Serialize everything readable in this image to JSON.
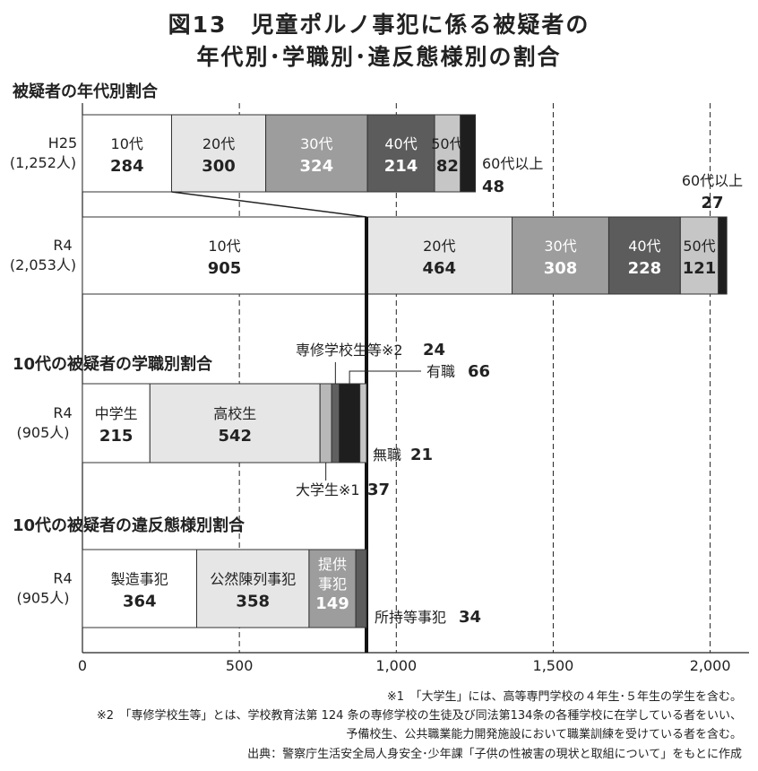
{
  "figure": {
    "title_line1": "図13　児童ポルノ事犯に係る被疑者の",
    "title_line2": "年代別･学職別･違反態様別の割合"
  },
  "chart_data": [
    {
      "type": "bar",
      "orientation": "horizontal",
      "stacked": true,
      "section_title": "被疑者の年代別割合",
      "xlim": [
        0,
        2100
      ],
      "x_ticks": [
        "0",
        "500",
        "1,000",
        "1,500",
        "2,000"
      ],
      "grid": "dashed vertical lines at 500, 1,000, 1,500, 2,000",
      "bars": [
        {
          "label": "H25",
          "sublabel": "(1,252人)",
          "segments": [
            {
              "name": "10代",
              "value": 284,
              "display": "284",
              "color": "#ffffff"
            },
            {
              "name": "20代",
              "value": 300,
              "display": "300",
              "color": "#e6e6e6"
            },
            {
              "name": "30代",
              "value": 324,
              "display": "324",
              "color": "#9d9d9d"
            },
            {
              "name": "40代",
              "value": 214,
              "display": "214",
              "color": "#5c5c5c"
            },
            {
              "name": "50代",
              "value": 82,
              "display": "82",
              "color": "#c6c6c6"
            },
            {
              "name": "60代以上",
              "value": 48,
              "display": "48",
              "color": "#1e1e1e"
            }
          ]
        },
        {
          "label": "R4",
          "sublabel": "(2,053人)",
          "segments": [
            {
              "name": "10代",
              "value": 905,
              "display": "905",
              "color": "#ffffff"
            },
            {
              "name": "20代",
              "value": 464,
              "display": "464",
              "color": "#e6e6e6"
            },
            {
              "name": "30代",
              "value": 308,
              "display": "308",
              "color": "#9d9d9d"
            },
            {
              "name": "40代",
              "value": 228,
              "display": "228",
              "color": "#5c5c5c"
            },
            {
              "name": "50代",
              "value": 121,
              "display": "121",
              "color": "#c6c6c6"
            },
            {
              "name": "60代以上",
              "value": 27,
              "display": "27",
              "color": "#1e1e1e"
            }
          ]
        }
      ]
    },
    {
      "type": "bar",
      "orientation": "horizontal",
      "stacked": true,
      "section_title": "10代の被疑者の学職別割合",
      "bars": [
        {
          "label": "R4",
          "sublabel": "(905人)",
          "segments": [
            {
              "name": "中学生",
              "value": 215,
              "display": "215",
              "color": "#ffffff"
            },
            {
              "name": "高校生",
              "value": 542,
              "display": "542",
              "color": "#e6e6e6"
            },
            {
              "name": "大学生※1",
              "value": 37,
              "display": "37",
              "color": "#b8b8b8"
            },
            {
              "name": "専修学校生等※2",
              "value": 24,
              "display": "24",
              "color": "#606060"
            },
            {
              "name": "有職",
              "value": 66,
              "display": "66",
              "color": "#1e1e1e"
            },
            {
              "name": "無職",
              "value": 21,
              "display": "21",
              "color": "#c6c6c6"
            }
          ]
        }
      ]
    },
    {
      "type": "bar",
      "orientation": "horizontal",
      "stacked": true,
      "section_title": "10代の被疑者の違反態様別割合",
      "bars": [
        {
          "label": "R4",
          "sublabel": "(905人)",
          "segments": [
            {
              "name": "製造事犯",
              "value": 364,
              "display": "364",
              "color": "#ffffff"
            },
            {
              "name": "公然陳列事犯",
              "value": 358,
              "display": "358",
              "color": "#e6e6e6"
            },
            {
              "name": "提供事犯",
              "value": 149,
              "display": "149",
              "color": "#9d9d9d"
            },
            {
              "name": "所持等事犯",
              "value": 34,
              "display": "34",
              "color": "#5c5c5c"
            }
          ]
        }
      ]
    }
  ],
  "notes": {
    "note1": "※1　「大学生」には、高等専門学校の４年生･５年生の学生を含む。",
    "note2_line1": "※2　「専修学校生等」とは、学校教育法第 124 条の専修学校の生徒及び同法第134条の各種学校に在学している者をいい、",
    "note2_line2": "予備校生、公共職業能力開発施設において職業訓練を受けている者を含む。",
    "source": "出典：警察庁生活安全局人身安全･少年課「子供の性被害の現状と取組について」をもとに作成"
  }
}
